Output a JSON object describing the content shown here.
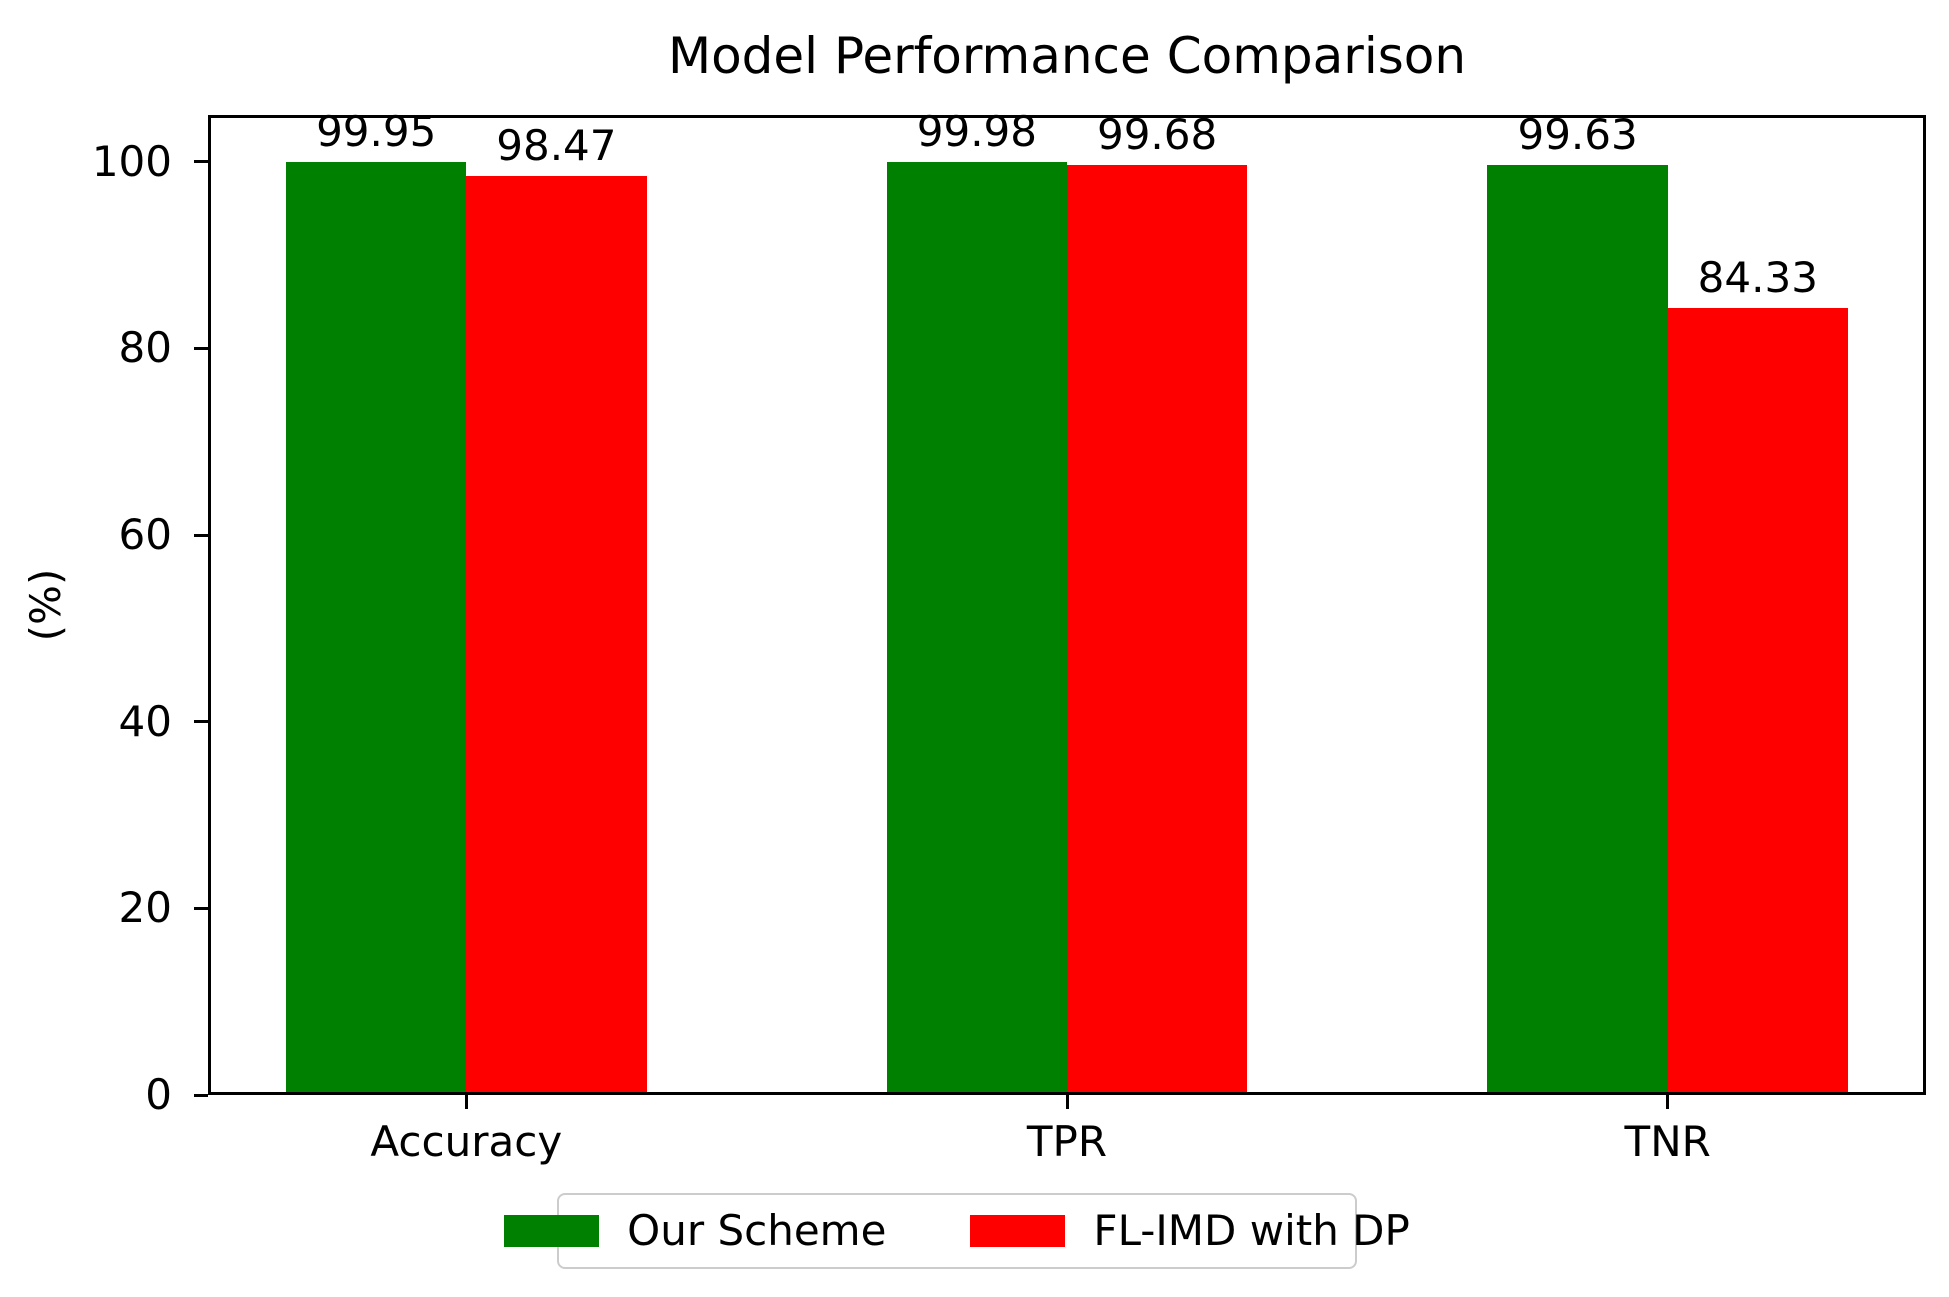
{
  "chart_data": {
    "type": "bar",
    "title": "Model Performance Comparison",
    "xlabel": "",
    "ylabel": "(%)",
    "categories": [
      "Accuracy",
      "TPR",
      "TNR"
    ],
    "series": [
      {
        "name": "Our Scheme",
        "color": "#008000",
        "values": [
          99.95,
          99.98,
          99.63
        ]
      },
      {
        "name": "FL-IMD with DP",
        "color": "#ff0000",
        "values": [
          98.47,
          99.68,
          84.33
        ]
      }
    ],
    "value_labels": true,
    "value_label_decimals": 2,
    "ylim": [
      0,
      105
    ],
    "yticks": [
      0,
      20,
      40,
      60,
      80,
      100
    ],
    "bar_width": 0.3,
    "grid": false,
    "legend_position": "lower center, below x-axis",
    "frame_color": "#000000",
    "legend_border_color": "#cccccc"
  }
}
